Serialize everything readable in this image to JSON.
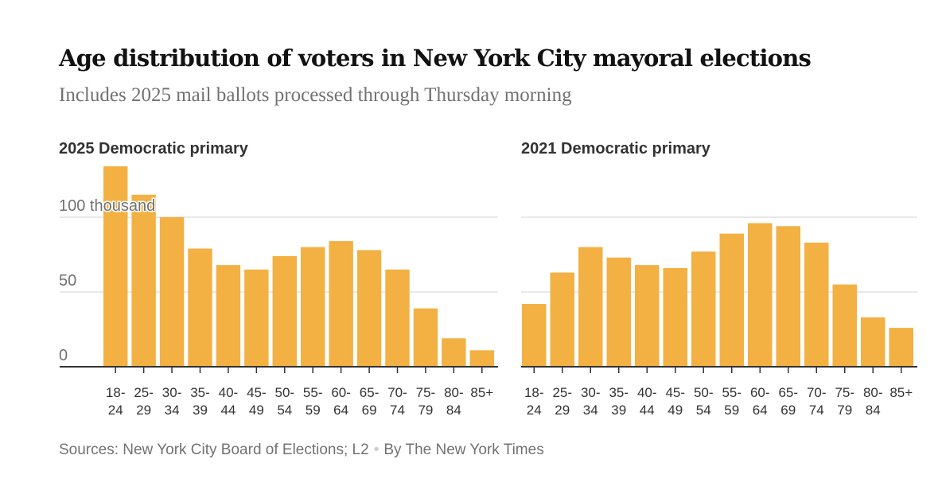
{
  "title": "Age distribution of voters in New York City mayoral elections",
  "subtitle": "Includes 2025 mail ballots processed through Thursday morning",
  "source": "Sources: New York City Board of Elections; L2",
  "byline": "By The New York Times",
  "colors": {
    "bar": "#f3b043",
    "grid": "#e2e2e2",
    "axis": "#333333"
  },
  "chart_data": [
    {
      "type": "bar",
      "title": "2025 Democratic primary",
      "ylabel": "thousand",
      "ylim": [
        0,
        140
      ],
      "yticks": [
        {
          "v": 0,
          "label": "0"
        },
        {
          "v": 50,
          "label": "50"
        },
        {
          "v": 100,
          "label": "100 thousand"
        }
      ],
      "categories": [
        [
          "18-",
          "24"
        ],
        [
          "25-",
          "29"
        ],
        [
          "30-",
          "34"
        ],
        [
          "35-",
          "39"
        ],
        [
          "40-",
          "44"
        ],
        [
          "45-",
          "49"
        ],
        [
          "50-",
          "54"
        ],
        [
          "55-",
          "59"
        ],
        [
          "60-",
          "64"
        ],
        [
          "65-",
          "69"
        ],
        [
          "70-",
          "74"
        ],
        [
          "75-",
          "79"
        ],
        [
          "80-",
          "84"
        ],
        [
          "85+",
          ""
        ]
      ],
      "values": [
        134,
        115,
        100,
        79,
        68,
        65,
        74,
        80,
        84,
        78,
        65,
        39,
        19,
        11
      ]
    },
    {
      "type": "bar",
      "title": "2021 Democratic primary",
      "ylabel": "thousand",
      "ylim": [
        0,
        140
      ],
      "yticks": [
        {
          "v": 0,
          "label": ""
        },
        {
          "v": 50,
          "label": ""
        },
        {
          "v": 100,
          "label": ""
        }
      ],
      "categories": [
        [
          "18-",
          "24"
        ],
        [
          "25-",
          "29"
        ],
        [
          "30-",
          "34"
        ],
        [
          "35-",
          "39"
        ],
        [
          "40-",
          "44"
        ],
        [
          "45-",
          "49"
        ],
        [
          "50-",
          "54"
        ],
        [
          "55-",
          "59"
        ],
        [
          "60-",
          "64"
        ],
        [
          "65-",
          "69"
        ],
        [
          "70-",
          "74"
        ],
        [
          "75-",
          "79"
        ],
        [
          "80-",
          "84"
        ],
        [
          "85+",
          ""
        ]
      ],
      "values": [
        42,
        63,
        80,
        73,
        68,
        66,
        77,
        89,
        96,
        94,
        83,
        55,
        33,
        26
      ]
    }
  ]
}
